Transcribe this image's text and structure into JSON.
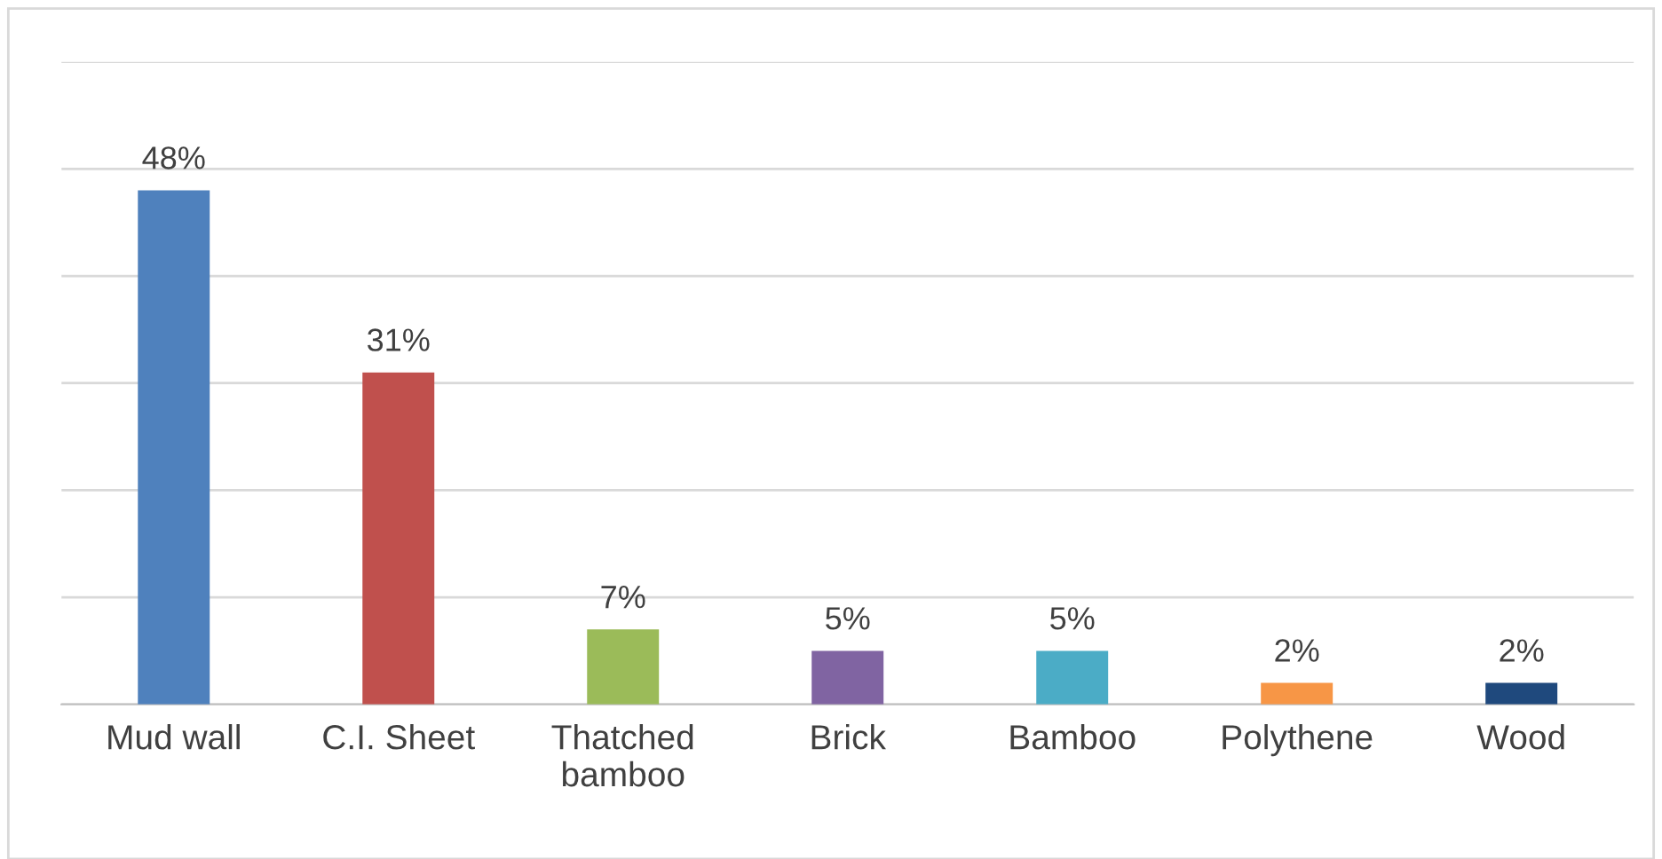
{
  "chart_data": {
    "type": "bar",
    "categories": [
      "Mud wall",
      "C.I. Sheet",
      "Thatched\nbamboo",
      "Brick",
      "Bamboo",
      "Polythene",
      "Wood"
    ],
    "values": [
      48,
      31,
      7,
      5,
      5,
      2,
      2
    ],
    "colors": [
      "#4f81bd",
      "#c0504d",
      "#9bbb59",
      "#8064a2",
      "#4bacc6",
      "#f79646",
      "#1f497d"
    ],
    "value_labels": [
      "48%",
      "31%",
      "7%",
      "5%",
      "5%",
      "2%",
      "2%"
    ],
    "ylim": [
      0,
      60
    ],
    "yticks": [
      {
        "value": 0,
        "label": null
      },
      {
        "value": 10,
        "label": null
      },
      {
        "value": 20,
        "label": null
      },
      {
        "value": 30,
        "label": null
      },
      {
        "value": 40,
        "label": null
      },
      {
        "value": 50,
        "label": null
      },
      {
        "value": 60,
        "label": null
      }
    ],
    "tick_labels": "x",
    "grid": "y",
    "legend": false
  }
}
